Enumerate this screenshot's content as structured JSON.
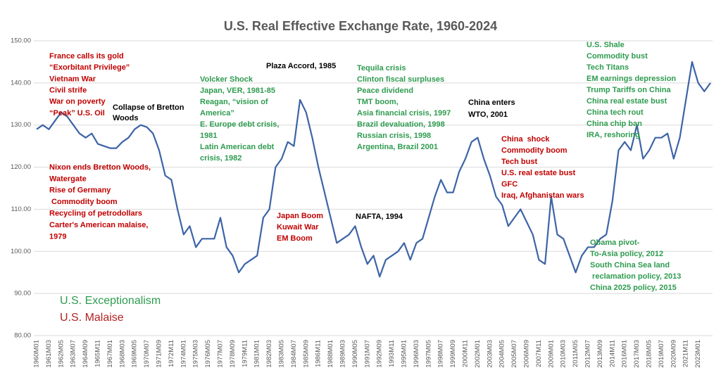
{
  "chart_data": {
    "type": "line",
    "title": "U.S. Real Effective Exchange Rate, 1960-2024",
    "categories": [
      "1960M01",
      null,
      "1961M03",
      null,
      "1962M05",
      null,
      "1963M07",
      null,
      "1964M09",
      null,
      "1965M11",
      null,
      "1967M01",
      null,
      "1968M03",
      null,
      "1969M05",
      null,
      "1970M07",
      null,
      "1971M09",
      null,
      "1972M11",
      null,
      "1974M01",
      null,
      "1975M03",
      null,
      "1976M05",
      null,
      "1977M07",
      null,
      "1978M09",
      null,
      "1979M11",
      null,
      "1981M01",
      null,
      "1982M03",
      null,
      "1983M05",
      null,
      "1984M07",
      null,
      "1985M09",
      null,
      "1986M11",
      null,
      "1988M01",
      null,
      "1989M03",
      null,
      "1990M05",
      null,
      "1991M07",
      null,
      "1992M09",
      null,
      "1993M11",
      null,
      "1995M01",
      null,
      "1996M03",
      null,
      "1997M05",
      null,
      "1998M07",
      null,
      "1999M09",
      null,
      "2000M11",
      null,
      "2002M01",
      null,
      "2003M03",
      null,
      "2004M05",
      null,
      "2005M07",
      null,
      "2006M09",
      null,
      "2007M11",
      null,
      "2009M01",
      null,
      "2010M03",
      null,
      "2011M05",
      null,
      "2012M07",
      null,
      "2013M09",
      null,
      "2014M11",
      null,
      "2016M01",
      null,
      "2017M03",
      null,
      "2018M05",
      null,
      "2019M07",
      null,
      "2020M09",
      null,
      "2021M11",
      null,
      "2023M01",
      null,
      null
    ],
    "series": [
      {
        "color": "#3d64a6",
        "values": [
          129,
          130,
          129,
          131,
          133,
          132,
          130,
          128,
          127,
          128,
          125.5,
          125,
          124.5,
          124.5,
          126,
          127,
          129,
          130,
          129.5,
          128,
          124,
          118,
          117,
          110,
          104,
          106,
          101,
          103,
          103,
          103,
          108,
          101,
          99,
          95,
          97,
          98,
          99,
          108,
          110,
          120,
          122,
          126,
          125,
          136,
          133,
          127,
          120,
          114,
          108,
          102,
          103,
          104,
          106,
          101,
          97,
          99,
          94,
          98,
          99,
          100,
          102,
          98,
          102,
          103,
          108,
          113,
          117,
          114,
          114,
          119,
          122,
          126,
          127,
          122,
          118,
          113,
          111,
          106,
          108,
          110,
          107,
          104,
          98,
          97,
          113,
          104,
          103,
          99,
          95,
          99,
          101,
          101,
          103,
          104,
          112,
          124,
          126,
          124,
          130,
          122,
          124,
          127,
          127,
          128,
          122,
          127,
          136,
          145,
          140,
          138,
          140
        ]
      }
    ],
    "ylim": [
      80,
      150
    ],
    "yticks": [
      {
        "value": 80,
        "label": "80.00"
      },
      {
        "value": 90,
        "label": "90.00"
      },
      {
        "value": 100,
        "label": "100.00"
      },
      {
        "value": 110,
        "label": "110.00"
      },
      {
        "value": 120,
        "label": "120.00"
      },
      {
        "value": 130,
        "label": "130.00"
      },
      {
        "value": 140,
        "label": "140.00"
      },
      {
        "value": 150,
        "label": "150.00"
      }
    ],
    "grid": true,
    "legend": [
      {
        "text": "U.S. Exceptionalism",
        "color": "#2e9b4f"
      },
      {
        "text": "U.S. Malaise",
        "color": "#b22222"
      }
    ],
    "annotations": [
      {
        "color": "#c00000",
        "lines": [
          "France calls its gold",
          "“Exorbitant Privilege”",
          "Vietnam War",
          "Civil strife",
          "War on poverty",
          "“Peak” U.S. Oil"
        ]
      },
      {
        "color": "#000000",
        "lines": [
          "Collapse of Bretton",
          "Woods"
        ]
      },
      {
        "color": "#c00000",
        "lines": [
          "Nixon ends Bretton Woods,",
          "Watergate",
          "Rise of Germany",
          " Commodity boom",
          "Recycling of petrodollars",
          "Carter's American malaise,",
          "1979"
        ]
      },
      {
        "color": "#2e9b4f",
        "lines": [
          "Volcker Shock",
          "Japan, VER, 1981-85",
          "Reagan, “vision of",
          "America”",
          "E. Europe debt crisis,",
          "1981",
          "Latin American debt",
          "crisis, 1982"
        ]
      },
      {
        "color": "#000000",
        "lines": [
          "Plaza Accord, 1985"
        ]
      },
      {
        "color": "#c00000",
        "lines": [
          "Japan Boom",
          "Kuwait War",
          "EM Boom"
        ]
      },
      {
        "color": "#2e9b4f",
        "lines": [
          "Tequila crisis",
          "Clinton fiscal surpluses",
          "Peace dividend",
          "TMT boom,",
          "Asia financial crisis, 1997",
          "Brazil devaluation, 1998",
          "Russian crisis, 1998",
          "Argentina, Brazil 2001"
        ]
      },
      {
        "color": "#000000",
        "lines": [
          "NAFTA, 1994"
        ]
      },
      {
        "color": "#000000",
        "lines": [
          "China enters",
          "WTO, 2001"
        ]
      },
      {
        "color": "#c00000",
        "lines": [
          "China  shock",
          "Commodity boom",
          "Tech bust",
          "U.S. real estate bust",
          "GFC",
          "Iraq, Afghanistan wars"
        ]
      },
      {
        "color": "#2e9b4f",
        "lines": [
          "U.S. Shale",
          "Commodity bust",
          "Tech Titans",
          "EM earnings depression",
          "Trump Tariffs on China",
          "China real estate bust",
          "China tech rout",
          "China chip ban",
          "IRA, reshoring"
        ]
      },
      {
        "color": "#2e9b4f",
        "lines": [
          "Obama pivot-",
          "To-Asia policy, 2012",
          "South China Sea land",
          " reclamation policy, 2013",
          "China 2025 policy, 2015"
        ]
      }
    ]
  }
}
